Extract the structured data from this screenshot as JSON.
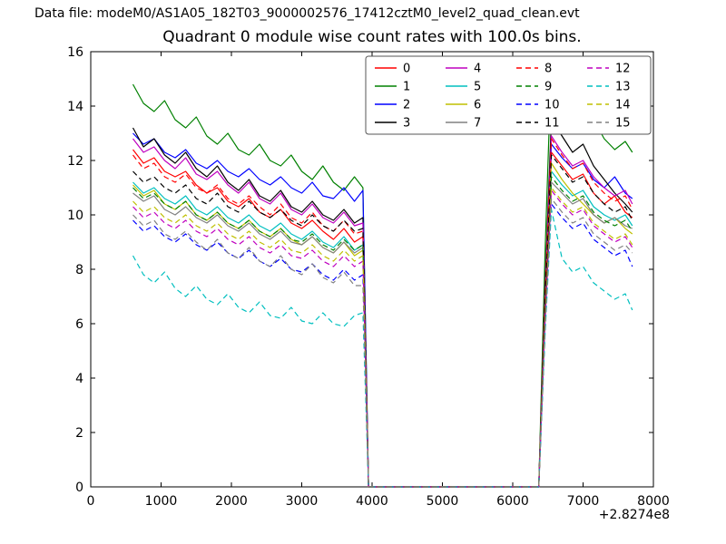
{
  "figure": {
    "data_file_label": "Data file: modeM0/AS1A05_182T03_9000002576_17412cztM0_level2_quad_clean.evt"
  },
  "chart_data": {
    "type": "line",
    "title": "Quadrant 0 module wise count rates with 100.0s bins.",
    "xlabel": "",
    "ylabel": "",
    "xlim": [
      0,
      8000
    ],
    "ylim": [
      0,
      16
    ],
    "xticks": [
      0,
      1000,
      2000,
      3000,
      4000,
      5000,
      6000,
      7000,
      8000
    ],
    "yticks": [
      0,
      2,
      4,
      6,
      8,
      10,
      12,
      14,
      16
    ],
    "x_offset_label": "+2.8274e8",
    "grid": false,
    "legend": {
      "position": "upper right inside",
      "columns": 4,
      "entries": [
        "0",
        "1",
        "2",
        "3",
        "4",
        "5",
        "6",
        "7",
        "8",
        "9",
        "10",
        "11",
        "12",
        "13",
        "14",
        "15"
      ]
    },
    "x": [
      600,
      750,
      900,
      1050,
      1200,
      1350,
      1500,
      1650,
      1800,
      1950,
      2100,
      2250,
      2400,
      2550,
      2700,
      2850,
      3000,
      3150,
      3300,
      3450,
      3600,
      3750,
      3870,
      3950,
      6370,
      6460,
      6550,
      6700,
      6850,
      7000,
      7150,
      7300,
      7450,
      7600,
      7700
    ],
    "series": [
      {
        "name": "0",
        "color": "#ff0000",
        "dash": "solid",
        "values": [
          12.4,
          11.9,
          12.1,
          11.6,
          11.4,
          11.6,
          11.1,
          10.8,
          11.0,
          10.5,
          10.3,
          10.6,
          10.1,
          9.9,
          10.2,
          9.7,
          9.5,
          9.8,
          9.4,
          9.1,
          9.5,
          9.0,
          9.2,
          0,
          0,
          6.8,
          12.3,
          11.8,
          11.3,
          11.5,
          10.8,
          10.4,
          10.7,
          10.1,
          9.9
        ]
      },
      {
        "name": "1",
        "color": "#008000",
        "dash": "solid",
        "values": [
          14.8,
          14.1,
          13.8,
          14.2,
          13.5,
          13.2,
          13.6,
          12.9,
          12.6,
          13.0,
          12.4,
          12.2,
          12.6,
          12.0,
          11.8,
          12.2,
          11.6,
          11.3,
          11.8,
          11.2,
          10.9,
          11.4,
          11.0,
          0,
          0,
          8.6,
          15.7,
          14.6,
          13.8,
          13.2,
          13.5,
          12.8,
          12.4,
          12.7,
          12.3
        ]
      },
      {
        "name": "2",
        "color": "#0000ff",
        "dash": "solid",
        "values": [
          13.0,
          12.6,
          12.8,
          12.3,
          12.1,
          12.4,
          11.9,
          11.7,
          12.0,
          11.6,
          11.4,
          11.7,
          11.3,
          11.1,
          11.4,
          11.0,
          10.8,
          11.2,
          10.7,
          10.6,
          11.0,
          10.5,
          10.9,
          0,
          0,
          6.9,
          12.6,
          12.1,
          11.7,
          11.9,
          11.3,
          11.0,
          11.4,
          10.8,
          10.6
        ]
      },
      {
        "name": "3",
        "color": "#000000",
        "dash": "solid",
        "values": [
          13.2,
          12.5,
          12.8,
          12.2,
          11.9,
          12.3,
          11.7,
          11.4,
          11.8,
          11.2,
          10.9,
          11.3,
          10.7,
          10.5,
          10.9,
          10.3,
          10.1,
          10.5,
          10.0,
          9.8,
          10.2,
          9.7,
          9.9,
          0,
          0,
          7.4,
          13.5,
          12.9,
          12.3,
          12.6,
          11.8,
          11.3,
          10.8,
          10.4,
          10.1
        ]
      },
      {
        "name": "4",
        "color": "#bf00bf",
        "dash": "solid",
        "values": [
          12.8,
          12.3,
          12.5,
          12.0,
          11.7,
          12.1,
          11.5,
          11.3,
          11.6,
          11.1,
          10.8,
          11.2,
          10.6,
          10.4,
          10.8,
          10.2,
          10.0,
          10.4,
          9.9,
          9.7,
          10.1,
          9.6,
          9.7,
          0,
          0,
          7.1,
          12.9,
          12.3,
          11.8,
          12.0,
          11.4,
          11.0,
          10.7,
          10.9,
          10.4
        ]
      },
      {
        "name": "5",
        "color": "#00bfbf",
        "dash": "solid",
        "values": [
          11.2,
          10.8,
          11.0,
          10.6,
          10.4,
          10.7,
          10.2,
          10.0,
          10.3,
          9.9,
          9.7,
          10.0,
          9.6,
          9.4,
          9.7,
          9.3,
          9.1,
          9.4,
          9.0,
          8.8,
          9.2,
          8.7,
          8.9,
          0,
          0,
          6.4,
          11.6,
          11.1,
          10.7,
          10.9,
          10.3,
          10.0,
          9.8,
          10.0,
          9.6
        ]
      },
      {
        "name": "6",
        "color": "#bfbf00",
        "dash": "solid",
        "values": [
          11.1,
          10.7,
          10.9,
          10.4,
          10.2,
          10.5,
          10.0,
          9.8,
          10.1,
          9.7,
          9.5,
          9.8,
          9.4,
          9.2,
          9.5,
          9.1,
          8.9,
          9.2,
          8.8,
          8.6,
          9.0,
          8.5,
          8.7,
          0,
          0,
          6.5,
          11.9,
          11.3,
          10.8,
          10.4,
          10.0,
          9.7,
          9.9,
          9.5,
          9.3
        ]
      },
      {
        "name": "7",
        "color": "#808080",
        "dash": "solid",
        "values": [
          10.8,
          10.5,
          10.7,
          10.2,
          10.0,
          10.3,
          9.9,
          9.7,
          10.0,
          9.6,
          9.4,
          9.7,
          9.3,
          9.1,
          9.4,
          9.0,
          8.9,
          9.2,
          8.8,
          8.6,
          9.0,
          8.6,
          8.8,
          0,
          0,
          6.2,
          11.2,
          10.8,
          10.4,
          10.6,
          10.0,
          9.7,
          9.9,
          9.6,
          9.5
        ]
      },
      {
        "name": "8",
        "color": "#ff0000",
        "dash": "dashed",
        "values": [
          12.2,
          11.7,
          11.9,
          11.4,
          11.2,
          11.5,
          11.0,
          10.8,
          11.1,
          10.6,
          10.4,
          10.7,
          10.3,
          10.0,
          10.4,
          9.9,
          9.7,
          10.1,
          9.6,
          9.4,
          9.8,
          9.3,
          9.4,
          0,
          0,
          7.0,
          12.8,
          12.2,
          11.7,
          11.9,
          11.2,
          10.8,
          10.5,
          10.7,
          10.2
        ]
      },
      {
        "name": "9",
        "color": "#008000",
        "dash": "dashed",
        "values": [
          11.0,
          10.6,
          10.8,
          10.4,
          10.2,
          10.5,
          10.0,
          9.8,
          10.1,
          9.7,
          9.5,
          9.8,
          9.4,
          9.2,
          9.5,
          9.1,
          9.0,
          9.3,
          8.9,
          8.7,
          9.1,
          8.7,
          8.9,
          0,
          0,
          6.3,
          11.4,
          10.9,
          10.5,
          10.7,
          10.1,
          9.8,
          9.6,
          9.8,
          9.4
        ]
      },
      {
        "name": "10",
        "color": "#0000ff",
        "dash": "dashed",
        "values": [
          9.8,
          9.4,
          9.6,
          9.2,
          9.0,
          9.3,
          8.9,
          8.7,
          9.0,
          8.6,
          8.4,
          8.7,
          8.3,
          8.1,
          8.4,
          8.0,
          7.9,
          8.2,
          7.8,
          7.6,
          8.0,
          7.6,
          7.8,
          0,
          0,
          5.7,
          10.4,
          9.9,
          9.5,
          9.7,
          9.1,
          8.8,
          8.5,
          8.7,
          8.1
        ]
      },
      {
        "name": "11",
        "color": "#000000",
        "dash": "dashed",
        "values": [
          11.6,
          11.2,
          11.4,
          11.0,
          10.8,
          11.1,
          10.6,
          10.4,
          10.8,
          10.3,
          10.1,
          10.5,
          10.1,
          9.9,
          10.2,
          9.8,
          9.6,
          10.0,
          9.6,
          9.4,
          9.8,
          9.4,
          9.5,
          0,
          0,
          6.7,
          12.2,
          11.7,
          11.2,
          11.4,
          10.8,
          10.4,
          10.1,
          10.3,
          9.8
        ]
      },
      {
        "name": "12",
        "color": "#bf00bf",
        "dash": "dashed",
        "values": [
          10.3,
          9.9,
          10.1,
          9.7,
          9.5,
          9.8,
          9.4,
          9.2,
          9.5,
          9.1,
          8.9,
          9.2,
          8.8,
          8.6,
          8.9,
          8.5,
          8.4,
          8.7,
          8.3,
          8.1,
          8.5,
          8.1,
          8.3,
          0,
          0,
          6.0,
          10.9,
          10.4,
          10.0,
          10.2,
          9.6,
          9.3,
          9.0,
          9.2,
          8.8
        ]
      },
      {
        "name": "13",
        "color": "#00bfbf",
        "dash": "dashed",
        "values": [
          8.5,
          7.8,
          7.5,
          7.9,
          7.3,
          7.0,
          7.4,
          6.9,
          6.7,
          7.1,
          6.6,
          6.4,
          6.8,
          6.3,
          6.2,
          6.6,
          6.1,
          6.0,
          6.4,
          6.0,
          5.9,
          6.3,
          6.4,
          0,
          0,
          5.6,
          10.2,
          8.4,
          7.9,
          8.1,
          7.5,
          7.2,
          6.9,
          7.1,
          6.5
        ]
      },
      {
        "name": "14",
        "color": "#bfbf00",
        "dash": "dashed",
        "values": [
          10.5,
          10.1,
          10.3,
          9.9,
          9.7,
          10.0,
          9.6,
          9.4,
          9.7,
          9.3,
          9.1,
          9.4,
          9.0,
          8.8,
          9.1,
          8.7,
          8.6,
          8.9,
          8.5,
          8.3,
          8.7,
          8.3,
          8.5,
          0,
          0,
          6.1,
          11.0,
          10.5,
          10.1,
          10.3,
          9.7,
          9.4,
          9.1,
          9.3,
          8.9
        ]
      },
      {
        "name": "15",
        "color": "#808080",
        "dash": "dashed",
        "values": [
          10.0,
          9.6,
          9.8,
          9.3,
          9.1,
          9.4,
          9.0,
          8.7,
          9.1,
          8.6,
          8.4,
          8.8,
          8.3,
          8.1,
          8.5,
          8.0,
          7.8,
          8.2,
          7.7,
          7.5,
          7.9,
          7.4,
          7.4,
          0,
          0,
          5.8,
          10.6,
          10.1,
          9.7,
          9.9,
          9.3,
          9.0,
          8.7,
          8.9,
          8.6
        ]
      }
    ]
  }
}
